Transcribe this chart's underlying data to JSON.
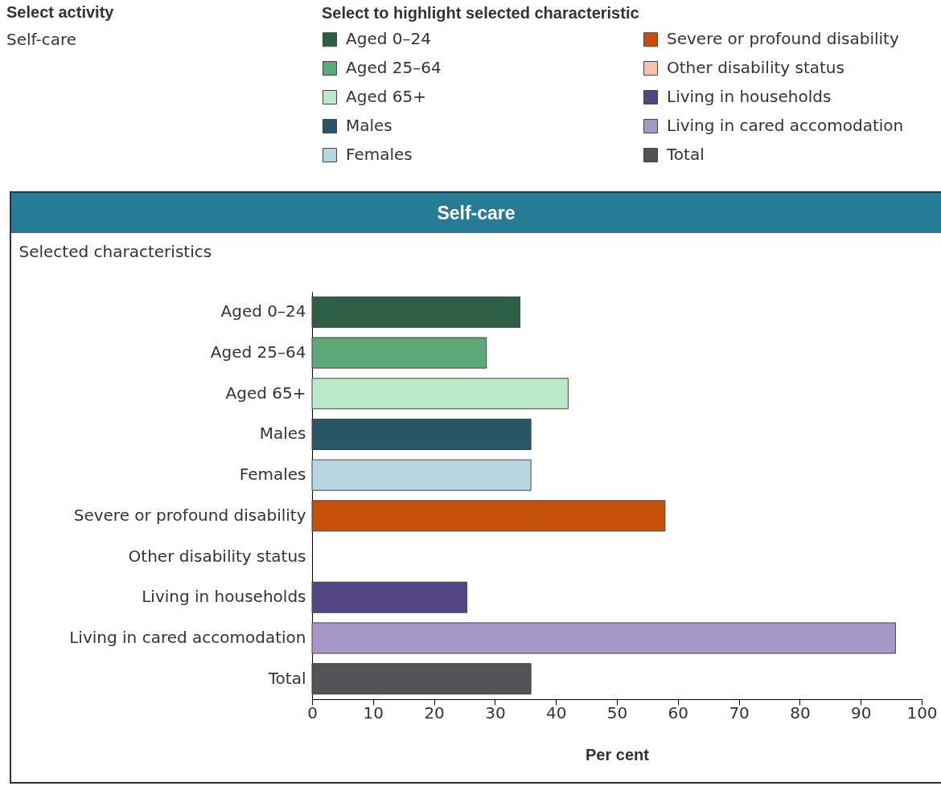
{
  "chart_data": {
    "type": "bar",
    "orientation": "horizontal",
    "stacked": true,
    "title": "Self-care",
    "xlabel": "Per cent",
    "ylabel": "Selected characteristics",
    "legend_title": "Select to highlight selected characteristic",
    "legend": "top",
    "annotations": [
      "Select activity",
      "Self-care"
    ],
    "categories": [
      "Aged 0–24",
      "Aged 25–64",
      "Aged 65+",
      "Males",
      "Females",
      "Severe or profound disability",
      "Other disability status",
      "Living in households",
      "Living in cared accomodation",
      "Total"
    ],
    "series": [
      {
        "name": "Aged 0–24",
        "color": "#2f5e46",
        "values": [
          34.1,
          null,
          null,
          null,
          null,
          null,
          null,
          null,
          null,
          null
        ]
      },
      {
        "name": "Aged 25–64",
        "color": "#5ea778",
        "values": [
          null,
          28.6,
          null,
          null,
          null,
          null,
          null,
          null,
          null,
          null
        ]
      },
      {
        "name": "Aged 65+",
        "color": "#bde9cb",
        "values": [
          null,
          null,
          42.0,
          null,
          null,
          null,
          null,
          null,
          null,
          null
        ]
      },
      {
        "name": "Males",
        "color": "#285664",
        "values": [
          null,
          null,
          null,
          35.9,
          null,
          null,
          null,
          null,
          null,
          null
        ]
      },
      {
        "name": "Females",
        "color": "#b8d6e0",
        "values": [
          null,
          null,
          null,
          null,
          35.9,
          null,
          null,
          null,
          null,
          null
        ]
      },
      {
        "name": "Severe or profound disability",
        "color": "#c4500a",
        "values": [
          null,
          null,
          null,
          null,
          null,
          57.9,
          null,
          null,
          null,
          null
        ]
      },
      {
        "name": "Other disability status",
        "color": "#f5c4a8",
        "values": [
          null,
          null,
          null,
          null,
          null,
          null,
          null,
          null,
          null,
          null
        ]
      },
      {
        "name": "Living in households",
        "color": "#544684",
        "values": [
          null,
          null,
          null,
          null,
          null,
          null,
          null,
          25.4,
          null,
          null
        ]
      },
      {
        "name": "Living in cared accomodation",
        "color": "#a697c8",
        "values": [
          null,
          null,
          null,
          null,
          null,
          null,
          null,
          null,
          95.7,
          null
        ]
      },
      {
        "name": "Total",
        "color": "#525356",
        "values": [
          null,
          null,
          null,
          null,
          null,
          null,
          null,
          null,
          null,
          35.9
        ]
      }
    ],
    "xlim": [
      0,
      100
    ],
    "xticks": [
      0,
      10,
      20,
      30,
      40,
      50,
      60,
      70,
      80,
      90,
      100
    ]
  }
}
